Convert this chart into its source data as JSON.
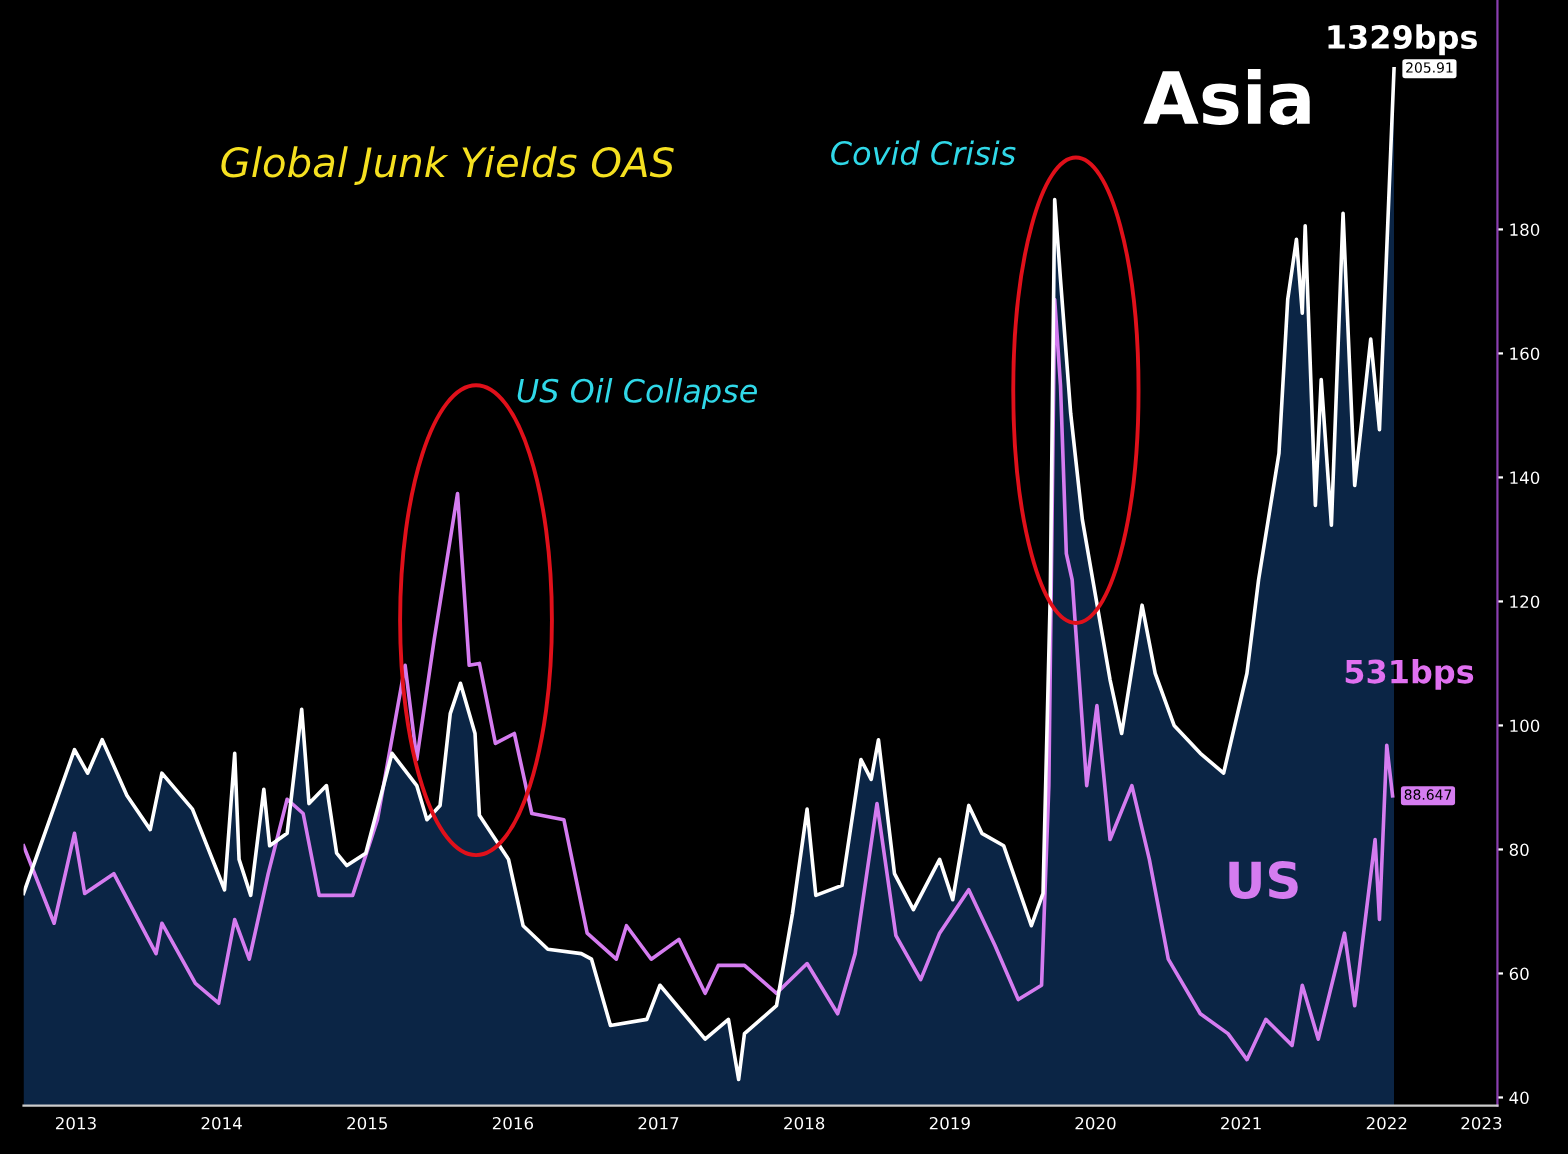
{
  "chart_data": {
    "type": "line",
    "title": "Global Junk Yields OAS",
    "xlim": [
      2013.14,
      2023.26
    ],
    "ylim": [
      38.7,
      217
    ],
    "xticks": [
      {
        "value": 2013.5,
        "label": "2013"
      },
      {
        "value": 2014.5,
        "label": "2014"
      },
      {
        "value": 2015.5,
        "label": "2015"
      },
      {
        "value": 2016.5,
        "label": "2016"
      },
      {
        "value": 2017.5,
        "label": "2017"
      },
      {
        "value": 2018.5,
        "label": "2018"
      },
      {
        "value": 2019.5,
        "label": "2019"
      },
      {
        "value": 2020.5,
        "label": "2020"
      },
      {
        "value": 2021.5,
        "label": "2021"
      },
      {
        "value": 2022.5,
        "label": "2022"
      },
      {
        "value": 2023.15,
        "label": "2023"
      }
    ],
    "yticks": [
      40,
      60,
      80,
      100,
      120,
      140,
      160,
      180
    ],
    "grid": false,
    "series": [
      {
        "name": "Asia",
        "type": "area",
        "color": "#0b2545",
        "x": [
          2013.14,
          2013.49,
          2013.58,
          2013.68,
          2013.85,
          2014.01,
          2014.09,
          2014.3,
          2014.52,
          2014.59,
          2014.62,
          2014.7,
          2014.79,
          2014.83,
          2014.95,
          2015.05,
          2015.1,
          2015.22,
          2015.29,
          2015.36,
          2015.49,
          2015.67,
          2015.84,
          2015.91,
          2016.0,
          2016.07,
          2016.14,
          2016.24,
          2016.27,
          2016.47,
          2016.57,
          2016.74,
          2016.97,
          2017.04,
          2017.17,
          2017.42,
          2017.51,
          2017.82,
          2017.98,
          2018.05,
          2018.09,
          2018.31,
          2018.42,
          2018.52,
          2018.58,
          2018.76,
          2018.89,
          2018.96,
          2019.01,
          2019.12,
          2019.25,
          2019.43,
          2019.52,
          2019.63,
          2019.72,
          2019.87,
          2020.06,
          2020.14,
          2020.19,
          2020.22,
          2020.26,
          2020.33,
          2020.41,
          2020.6,
          2020.68,
          2020.82,
          2020.91,
          2021.04,
          2021.22,
          2021.38,
          2021.54,
          2021.62,
          2021.76,
          2021.82,
          2021.88,
          2021.92,
          2021.94,
          2022.01,
          2022.05,
          2022.12,
          2022.2,
          2022.28,
          2022.39,
          2022.45,
          2022.55
        ],
        "values": [
          72.9,
          96.1,
          92.3,
          97.7,
          88.7,
          83.2,
          92.3,
          86.5,
          73.5,
          95.5,
          78.4,
          72.6,
          89.7,
          80.6,
          82.6,
          102.6,
          87.4,
          90.3,
          79.4,
          77.4,
          79.4,
          95.5,
          90.3,
          84.8,
          87.1,
          101.9,
          106.8,
          98.7,
          85.5,
          78.4,
          67.7,
          63.9,
          63.2,
          62.3,
          51.6,
          52.6,
          58.1,
          49.4,
          52.6,
          42.9,
          50.3,
          54.8,
          69.7,
          86.5,
          72.6,
          74.2,
          94.5,
          91.3,
          97.7,
          76.1,
          70.3,
          78.4,
          71.9,
          87.1,
          82.6,
          80.6,
          67.7,
          72.9,
          121.3,
          184.8,
          171.9,
          150.3,
          133.2,
          107.4,
          98.7,
          119.4,
          108.4,
          100.0,
          95.5,
          92.3,
          108.4,
          123.5,
          143.9,
          168.7,
          178.4,
          166.5,
          180.6,
          135.5,
          155.8,
          132.3,
          182.6,
          138.7,
          162.3,
          147.7,
          205.91
        ],
        "value_labels": [
          null,
          null,
          null,
          null,
          null,
          null,
          null,
          null,
          null,
          null,
          null,
          null,
          null,
          null,
          null,
          null,
          null,
          null,
          null,
          null,
          null,
          null,
          null,
          null,
          null,
          null,
          null,
          null,
          null,
          null,
          null,
          null,
          null,
          null,
          null,
          null,
          null,
          null,
          null,
          null,
          null,
          null,
          null,
          null,
          null,
          null,
          null,
          null,
          null,
          null,
          null,
          null,
          null,
          null,
          null,
          null,
          null,
          null,
          null,
          null,
          null,
          null,
          null,
          null,
          null,
          null,
          null,
          null,
          null,
          null,
          null,
          null,
          null,
          null,
          null,
          null,
          null,
          null,
          null,
          null,
          null,
          null,
          null,
          null,
          "205.91"
        ]
      },
      {
        "name": "US",
        "color": "#d57cf0",
        "x": [
          2013.14,
          2013.35,
          2013.49,
          2013.56,
          2013.76,
          2014.05,
          2014.09,
          2014.32,
          2014.48,
          2014.59,
          2014.69,
          2014.82,
          2014.95,
          2015.06,
          2015.17,
          2015.4,
          2015.57,
          2015.76,
          2015.84,
          2015.96,
          2016.12,
          2016.2,
          2016.27,
          2016.38,
          2016.51,
          2016.63,
          2016.85,
          2017.01,
          2017.21,
          2017.28,
          2017.45,
          2017.64,
          2017.82,
          2017.91,
          2018.09,
          2018.31,
          2018.52,
          2018.73,
          2018.85,
          2019.0,
          2019.13,
          2019.3,
          2019.43,
          2019.63,
          2019.81,
          2019.97,
          2020.13,
          2020.18,
          2020.22,
          2020.26,
          2020.3,
          2020.34,
          2020.44,
          2020.51,
          2020.6,
          2020.75,
          2020.87,
          2021.0,
          2021.22,
          2021.41,
          2021.54,
          2021.67,
          2021.85,
          2021.92,
          2022.03,
          2022.21,
          2022.28,
          2022.42,
          2022.45,
          2022.5,
          2022.54
        ],
        "values": [
          80.6,
          68.1,
          82.6,
          72.9,
          76.1,
          63.2,
          68.1,
          58.4,
          55.2,
          68.7,
          62.3,
          76.1,
          88.1,
          85.8,
          72.6,
          72.6,
          84.8,
          109.7,
          94.5,
          113.9,
          137.4,
          109.7,
          110.0,
          97.1,
          98.7,
          85.8,
          84.8,
          66.5,
          62.3,
          67.7,
          62.3,
          65.5,
          56.8,
          61.3,
          61.3,
          56.8,
          61.6,
          53.5,
          63.2,
          87.4,
          66.1,
          59.0,
          66.5,
          73.5,
          64.5,
          55.8,
          58.1,
          90.3,
          168.7,
          154.8,
          127.7,
          123.5,
          90.3,
          103.2,
          81.6,
          90.3,
          78.4,
          62.3,
          53.5,
          50.3,
          46.1,
          52.6,
          48.4,
          58.1,
          49.4,
          66.5,
          54.8,
          81.6,
          68.7,
          96.8,
          88.647
        ],
        "value_labels": [
          null,
          null,
          null,
          null,
          null,
          null,
          null,
          null,
          null,
          null,
          null,
          null,
          null,
          null,
          null,
          null,
          null,
          null,
          null,
          null,
          null,
          null,
          null,
          null,
          null,
          null,
          null,
          null,
          null,
          null,
          null,
          null,
          null,
          null,
          null,
          null,
          null,
          null,
          null,
          null,
          null,
          null,
          null,
          null,
          null,
          null,
          null,
          null,
          null,
          null,
          null,
          null,
          null,
          null,
          null,
          null,
          null,
          null,
          null,
          null,
          null,
          null,
          null,
          null,
          null,
          null,
          null,
          null,
          null,
          null,
          "88.647"
        ]
      }
    ],
    "annotations": [
      "US Oil Collapse",
      "Covid Crisis",
      "1329bps",
      "531bps"
    ]
  }
}
